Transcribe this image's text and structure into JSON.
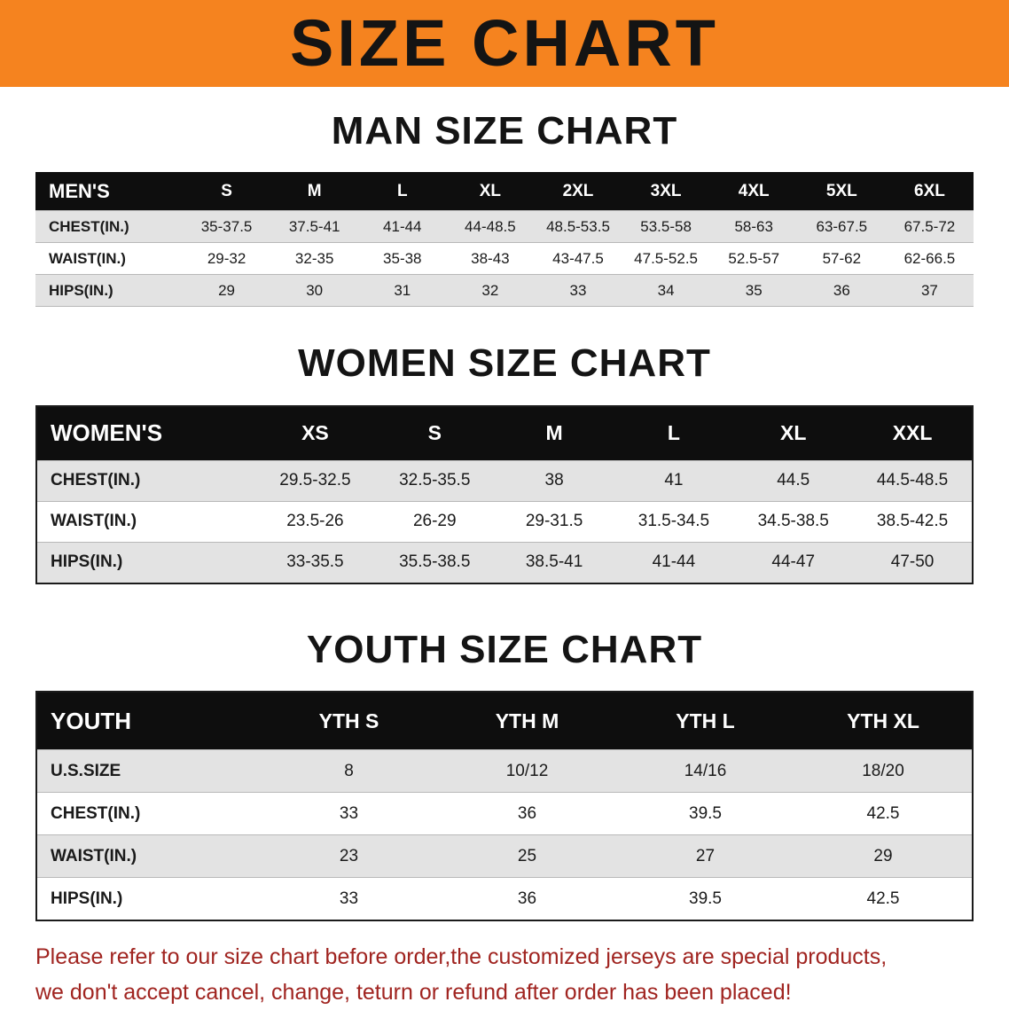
{
  "banner": {
    "title": "SIZE CHART"
  },
  "colors": {
    "banner_bg": "#f5831f",
    "table_header_bg": "#0e0e0e",
    "row_stripe": "#e3e3e3",
    "notice_text": "#a02420"
  },
  "sections": [
    {
      "id": "men",
      "heading": "MAN SIZE CHART",
      "table": {
        "header": [
          "MEN'S",
          "S",
          "M",
          "L",
          "XL",
          "2XL",
          "3XL",
          "4XL",
          "5XL",
          "6XL"
        ],
        "rows": [
          [
            "CHEST(IN.)",
            "35-37.5",
            "37.5-41",
            "41-44",
            "44-48.5",
            "48.5-53.5",
            "53.5-58",
            "58-63",
            "63-67.5",
            "67.5-72"
          ],
          [
            "WAIST(IN.)",
            "29-32",
            "32-35",
            "35-38",
            "38-43",
            "43-47.5",
            "47.5-52.5",
            "52.5-57",
            "57-62",
            "62-66.5"
          ],
          [
            "HIPS(IN.)",
            "29",
            "30",
            "31",
            "32",
            "33",
            "34",
            "35",
            "36",
            "37"
          ]
        ]
      }
    },
    {
      "id": "women",
      "heading": "WOMEN SIZE CHART",
      "table": {
        "header": [
          "WOMEN'S",
          "XS",
          "S",
          "M",
          "L",
          "XL",
          "XXL"
        ],
        "rows": [
          [
            "CHEST(IN.)",
            "29.5-32.5",
            "32.5-35.5",
            "38",
            "41",
            "44.5",
            "44.5-48.5"
          ],
          [
            "WAIST(IN.)",
            "23.5-26",
            "26-29",
            "29-31.5",
            "31.5-34.5",
            "34.5-38.5",
            "38.5-42.5"
          ],
          [
            "HIPS(IN.)",
            "33-35.5",
            "35.5-38.5",
            "38.5-41",
            "41-44",
            "44-47",
            "47-50"
          ]
        ]
      }
    },
    {
      "id": "youth",
      "heading": "YOUTH SIZE CHART",
      "table": {
        "header": [
          "YOUTH",
          "YTH S",
          "YTH M",
          "YTH L",
          "YTH XL"
        ],
        "rows": [
          [
            "U.S.SIZE",
            "8",
            "10/12",
            "14/16",
            "18/20"
          ],
          [
            "CHEST(IN.)",
            "33",
            "36",
            "39.5",
            "42.5"
          ],
          [
            "WAIST(IN.)",
            "23",
            "25",
            "27",
            "29"
          ],
          [
            "HIPS(IN.)",
            "33",
            "36",
            "39.5",
            "42.5"
          ]
        ]
      }
    }
  ],
  "footer": {
    "line1": "Please refer to our size chart before order,the customized jerseys are special products,",
    "line2": "we don't accept cancel, change, teturn or refund after order has been placed!"
  }
}
